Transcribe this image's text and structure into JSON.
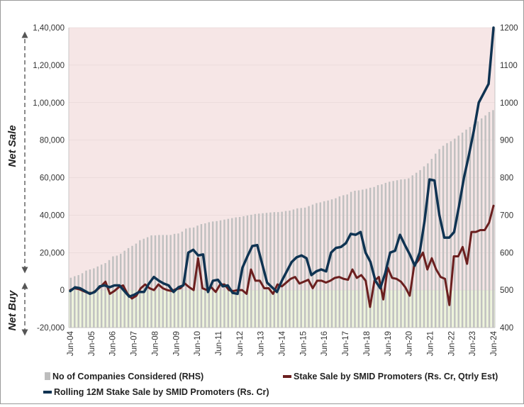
{
  "chart_data": {
    "type": "line",
    "title": "",
    "xlabel": "",
    "ylabel_left": "",
    "ylabel_right": "",
    "side_labels": {
      "net_sale": "Net Sale",
      "net_buy": "Net Buy"
    },
    "x_tick_labels": [
      "Jun-04",
      "Jun-05",
      "Jun-06",
      "Jun-07",
      "Jun-08",
      "Jun-09",
      "Jun-10",
      "Jun-11",
      "Jun-12",
      "Jun-13",
      "Jun-14",
      "Jun-15",
      "Jun-16",
      "Jun-17",
      "Jun-18",
      "Jun-19",
      "Jun-20",
      "Jun-21",
      "Jun-22",
      "Jun-23",
      "Jun-24"
    ],
    "y_left": {
      "min": -20000,
      "max": 140000,
      "ticks": [
        -20000,
        0,
        20000,
        40000,
        60000,
        80000,
        100000,
        120000,
        140000
      ],
      "tick_labels": [
        "-20,000",
        "0",
        "20,000",
        "40,000",
        "60,000",
        "80,000",
        "1,00,000",
        "1,20,000",
        "1,40,000"
      ]
    },
    "y_right": {
      "min": 400,
      "max": 1200,
      "ticks": [
        400,
        500,
        600,
        700,
        800,
        900,
        1000,
        1100,
        1200
      ],
      "tick_labels": [
        "400",
        "500",
        "600",
        "700",
        "800",
        "900",
        "1000",
        "1100",
        "1200"
      ]
    },
    "grid": true,
    "legend_position": "bottom",
    "colors": {
      "bars": "#c0c0c0",
      "stake_sale": "#6b1f1f",
      "rolling": "#0f3352",
      "sale_zone": "#f6e6e6",
      "buy_zone": "#eef4dc"
    },
    "series": [
      {
        "name": "No of Companies Considered (RHS)",
        "type": "bar",
        "axis": "right",
        "values": [
          533,
          537,
          540,
          545,
          552,
          555,
          558,
          563,
          568,
          572,
          580,
          590,
          592,
          597,
          605,
          612,
          618,
          624,
          633,
          637,
          641,
          646,
          646,
          647,
          647,
          647,
          647,
          650,
          651,
          656,
          664,
          666,
          667,
          672,
          676,
          678,
          681,
          683,
          684,
          686,
          688,
          690,
          692,
          694,
          695,
          697,
          699,
          701,
          703,
          704,
          705,
          706,
          707,
          708,
          708,
          709,
          711,
          712,
          715,
          718,
          719,
          720,
          724,
          728,
          732,
          734,
          737,
          739,
          742,
          745,
          750,
          753,
          755,
          762,
          765,
          766,
          768,
          770,
          773,
          775,
          780,
          782,
          786,
          789,
          791,
          793,
          795,
          796,
          798,
          806,
          813,
          820,
          830,
          838,
          850,
          864,
          876,
          885,
          892,
          897,
          904,
          912,
          920,
          928,
          935,
          942,
          950,
          958,
          966,
          975,
          980
        ]
      },
      {
        "name": "Stake Sale by SMID Promoters (Rs. Cr, Qtrly Est)",
        "type": "line",
        "axis": "left",
        "values": [
          0,
          1000,
          500,
          -500,
          -1500,
          -1500,
          0,
          2000,
          4500,
          -2000,
          -500,
          1500,
          2500,
          -2000,
          -4500,
          -3000,
          1000,
          3000,
          1000,
          0,
          3000,
          1000,
          0,
          -500,
          500,
          1000,
          3500,
          1500,
          0,
          17000,
          1000,
          0,
          1500,
          -1000,
          3000,
          3000,
          0,
          -500,
          0,
          0,
          -2000,
          11000,
          5000,
          5000,
          1000,
          1000,
          -2000,
          3000,
          2000,
          4000,
          6000,
          7000,
          3500,
          4500,
          5500,
          1000,
          5000,
          5000,
          4000,
          5000,
          6500,
          7000,
          6000,
          5500,
          11000,
          6500,
          8000,
          5000,
          -9000,
          5000,
          7000,
          -5000,
          12000,
          6500,
          6000,
          4500,
          1500,
          -3000,
          13000,
          16000,
          20000,
          11000,
          17000,
          11000,
          7000,
          6000,
          -8000,
          18000,
          18000,
          23000,
          14000,
          31000,
          31000,
          32000,
          32000,
          36000,
          45000
        ]
      },
      {
        "name": "Rolling 12M Stake Sale by SMID Promoters (Rs. Cr)",
        "type": "line",
        "axis": "left",
        "values": [
          -500,
          1500,
          1000,
          -500,
          -2000,
          -1000,
          2000,
          2500,
          1500,
          2500,
          2500,
          -500,
          -3500,
          -2500,
          -1000,
          -1000,
          3500,
          7000,
          5000,
          3500,
          2500,
          -1000,
          1500,
          2500,
          20000,
          21500,
          18500,
          19000,
          -1000,
          5000,
          5500,
          2000,
          2500,
          -1500,
          -2000,
          12000,
          18000,
          23500,
          24000,
          14000,
          4000,
          1500,
          -1000,
          5000,
          10000,
          15000,
          17500,
          18500,
          17000,
          8000,
          10000,
          11000,
          10000,
          20000,
          22500,
          23000,
          25000,
          30000,
          29500,
          31000,
          20000,
          15000,
          5000,
          1000,
          9000,
          20000,
          21000,
          29500,
          24000,
          19000,
          13000,
          20000,
          37000,
          59000,
          58500,
          40000,
          28000,
          28000,
          31000,
          45000,
          60000,
          72000,
          85000,
          100000,
          105000,
          110000,
          140000
        ]
      }
    ]
  }
}
